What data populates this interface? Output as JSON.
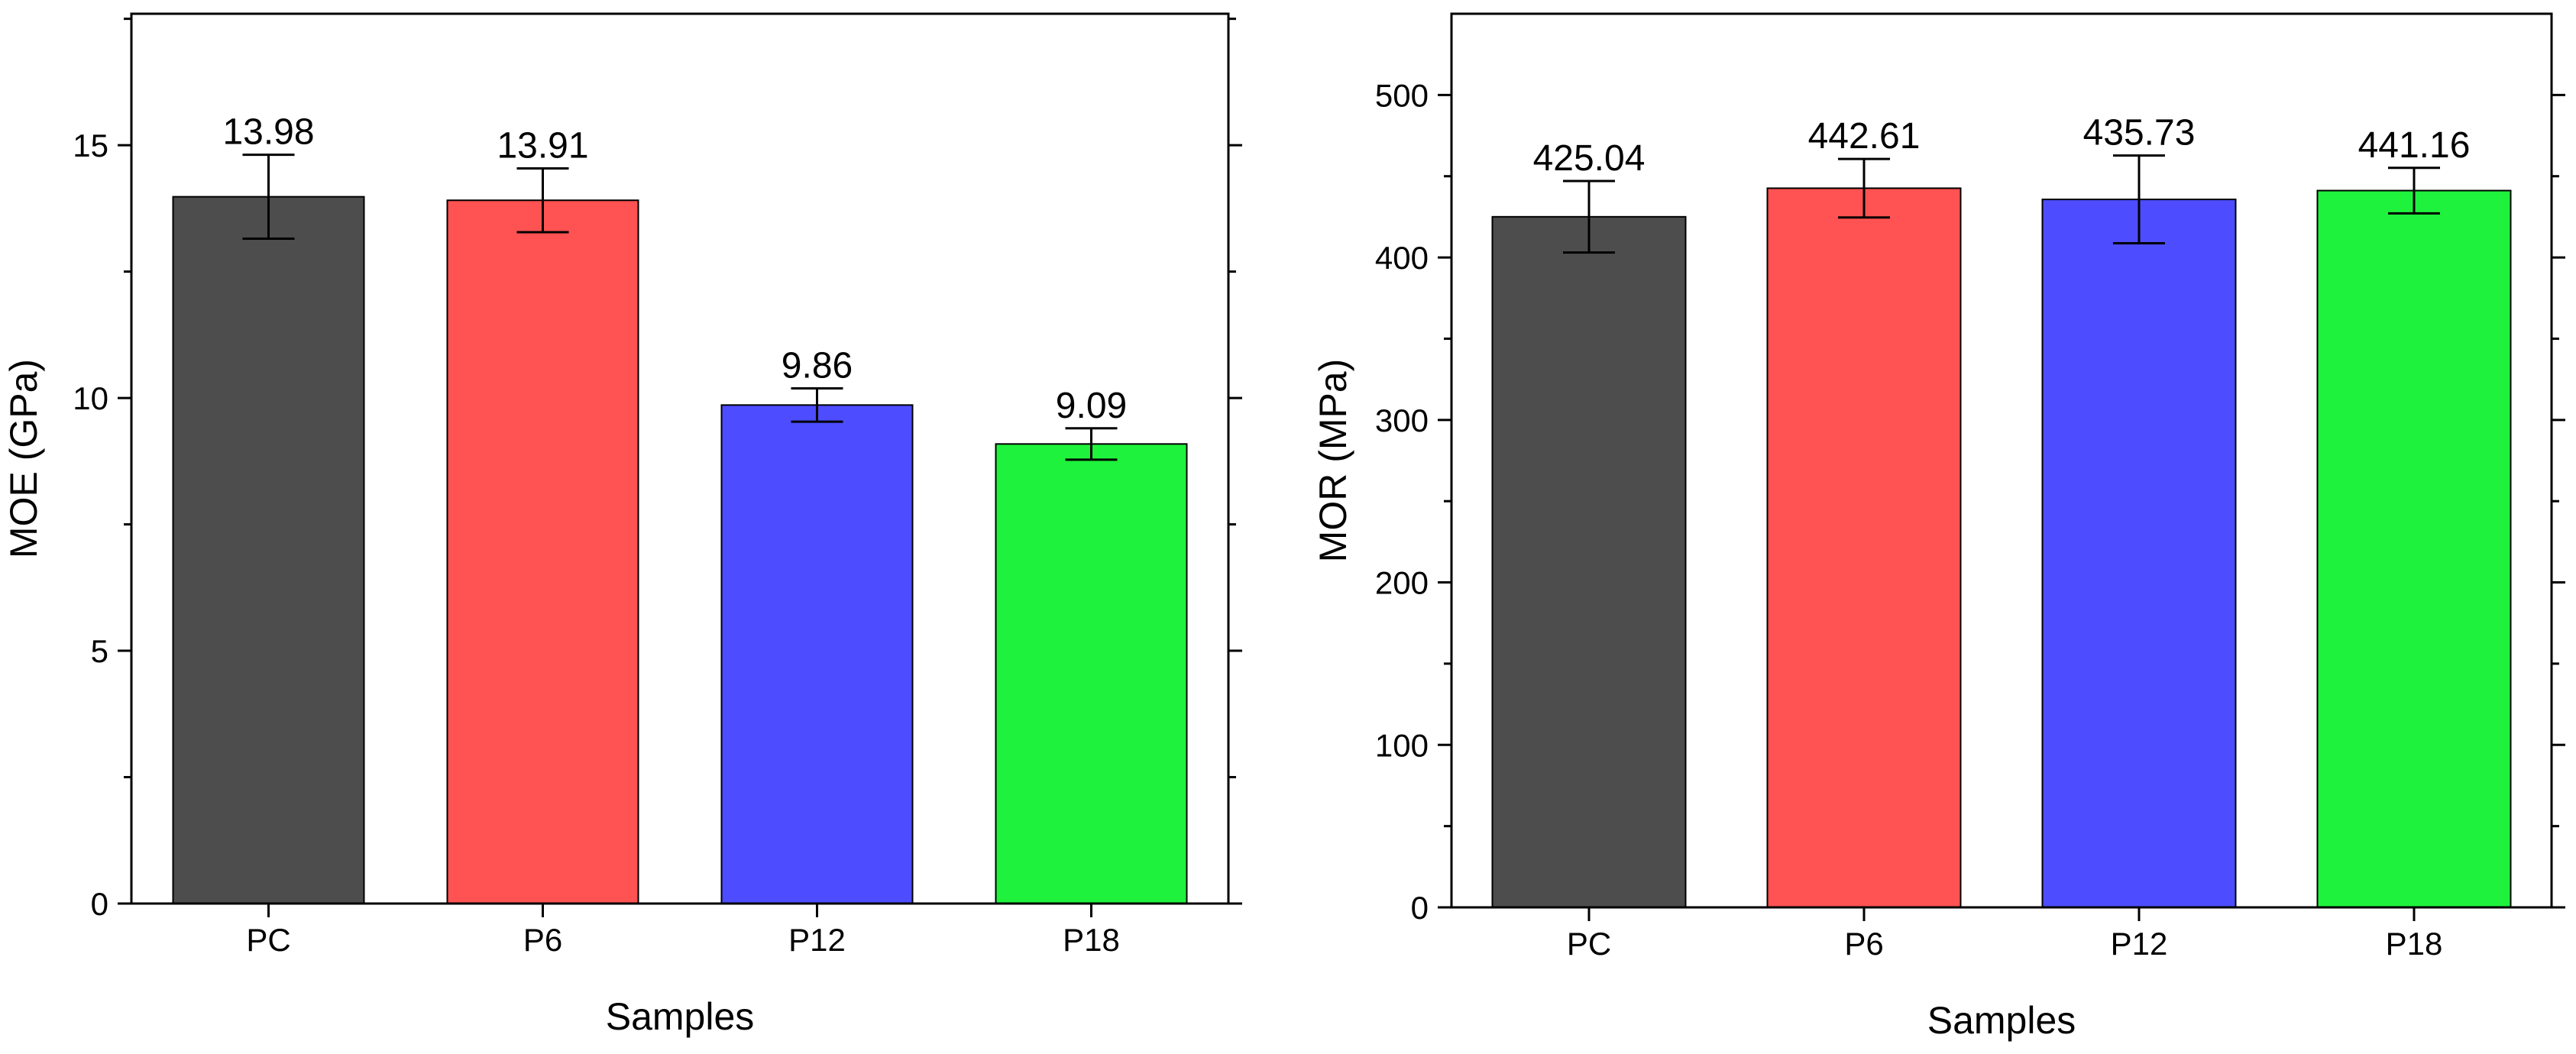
{
  "chart_data": [
    {
      "type": "bar",
      "categories": [
        "PC",
        "P6",
        "P12",
        "P18"
      ],
      "values": [
        13.98,
        13.91,
        9.86,
        9.09
      ],
      "errors": [
        0.83,
        0.63,
        0.33,
        0.31
      ],
      "value_labels": [
        "13.98",
        "13.91",
        "9.86",
        "9.09"
      ],
      "colors": [
        "#4d4d4d",
        "#ff5252",
        "#4d4dff",
        "#1ef23c"
      ],
      "xlabel": "Samples",
      "ylabel": "MOE (GPa)",
      "ylim": [
        0,
        17.6
      ],
      "yticks": [
        0,
        5,
        10,
        15
      ],
      "ytick_labels": [
        "0",
        "5",
        "10",
        "15"
      ],
      "minor_tick_step": 2.5
    },
    {
      "type": "bar",
      "categories": [
        "PC",
        "P6",
        "P12",
        "P18"
      ],
      "values": [
        425.04,
        442.61,
        435.73,
        441.16
      ],
      "errors": [
        22,
        18,
        27,
        14
      ],
      "value_labels": [
        "425.04",
        "442.61",
        "435.73",
        "441.16"
      ],
      "colors": [
        "#4d4d4d",
        "#ff5252",
        "#4d4dff",
        "#1ef23c"
      ],
      "xlabel": "Samples",
      "ylabel": "MOR (MPa)",
      "ylim": [
        0,
        550
      ],
      "yticks": [
        0,
        100,
        200,
        300,
        400,
        500
      ],
      "ytick_labels": [
        "0",
        "100",
        "200",
        "300",
        "400",
        "500"
      ],
      "minor_tick_step": 50
    }
  ]
}
